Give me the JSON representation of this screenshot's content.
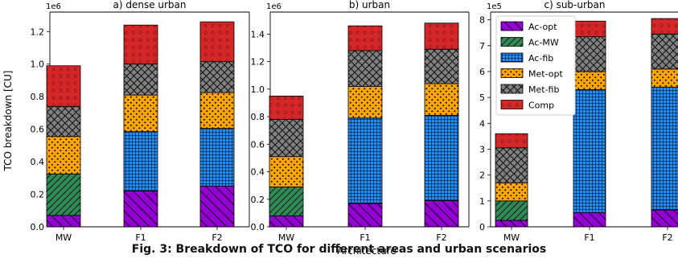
{
  "figure": {
    "ylabel": "TCO breakdown [CU]",
    "xlabel": "Architecture",
    "caption": "Fig. 3: Breakdown of TCO for different areas and urban scenarios",
    "colors": {
      "Ac-opt": "#9400d3",
      "Ac-MW": "#2e8b57",
      "Ac-fib": "#1e90ff",
      "Met-opt": "#ffa500",
      "Met-fib": "#808080",
      "Comp": "#d62728"
    }
  },
  "chart_data": [
    {
      "type": "bar",
      "stacked": true,
      "title": "a) dense urban",
      "multiplier": "1e6",
      "categories": [
        "MW",
        "F1",
        "F2"
      ],
      "ylim": [
        0,
        1.32
      ],
      "yticks": [
        "0.0",
        "0.2",
        "0.4",
        "0.6",
        "0.8",
        "1.0",
        "1.2"
      ],
      "ytick_values": [
        0,
        0.2,
        0.4,
        0.6,
        0.8,
        1.0,
        1.2
      ],
      "series": [
        {
          "name": "Ac-opt",
          "values": [
            0.07,
            0.22,
            0.25
          ]
        },
        {
          "name": "Ac-MW",
          "values": [
            0.255,
            0,
            0
          ]
        },
        {
          "name": "Ac-fib",
          "values": [
            0,
            0.365,
            0.355
          ]
        },
        {
          "name": "Met-opt",
          "values": [
            0.23,
            0.225,
            0.22
          ]
        },
        {
          "name": "Met-fib",
          "values": [
            0.185,
            0.19,
            0.19
          ]
        },
        {
          "name": "Comp",
          "values": [
            0.25,
            0.24,
            0.245
          ]
        }
      ]
    },
    {
      "type": "bar",
      "stacked": true,
      "title": "b) urban",
      "multiplier": "1e6",
      "categories": [
        "MW",
        "F1",
        "F2"
      ],
      "ylim": [
        0,
        1.56
      ],
      "yticks": [
        "0.0",
        "0.2",
        "0.4",
        "0.6",
        "0.8",
        "1.0",
        "1.2",
        "1.4"
      ],
      "ytick_values": [
        0,
        0.2,
        0.4,
        0.6,
        0.8,
        1.0,
        1.2,
        1.4
      ],
      "series": [
        {
          "name": "Ac-opt",
          "values": [
            0.08,
            0.17,
            0.19
          ]
        },
        {
          "name": "Ac-MW",
          "values": [
            0.21,
            0,
            0
          ]
        },
        {
          "name": "Ac-fib",
          "values": [
            0,
            0.62,
            0.62
          ]
        },
        {
          "name": "Met-opt",
          "values": [
            0.22,
            0.23,
            0.23
          ]
        },
        {
          "name": "Met-fib",
          "values": [
            0.27,
            0.26,
            0.25
          ]
        },
        {
          "name": "Comp",
          "values": [
            0.17,
            0.18,
            0.19
          ]
        }
      ]
    },
    {
      "type": "bar",
      "stacked": true,
      "title": "c) sub-urban",
      "multiplier": "1e5",
      "categories": [
        "MW",
        "F1",
        "F2"
      ],
      "ylim": [
        0,
        8.3
      ],
      "yticks": [
        "0",
        "1",
        "2",
        "3",
        "4",
        "5",
        "6",
        "7",
        "8"
      ],
      "ytick_values": [
        0,
        1,
        2,
        3,
        4,
        5,
        6,
        7,
        8
      ],
      "legend": "top-left",
      "series": [
        {
          "name": "Ac-opt",
          "values": [
            0.25,
            0.55,
            0.65
          ]
        },
        {
          "name": "Ac-MW",
          "values": [
            0.75,
            0,
            0
          ]
        },
        {
          "name": "Ac-fib",
          "values": [
            0,
            4.75,
            4.75
          ]
        },
        {
          "name": "Met-opt",
          "values": [
            0.7,
            0.7,
            0.7
          ]
        },
        {
          "name": "Met-fib",
          "values": [
            1.35,
            1.35,
            1.35
          ]
        },
        {
          "name": "Comp",
          "values": [
            0.55,
            0.6,
            0.6
          ]
        }
      ]
    }
  ]
}
